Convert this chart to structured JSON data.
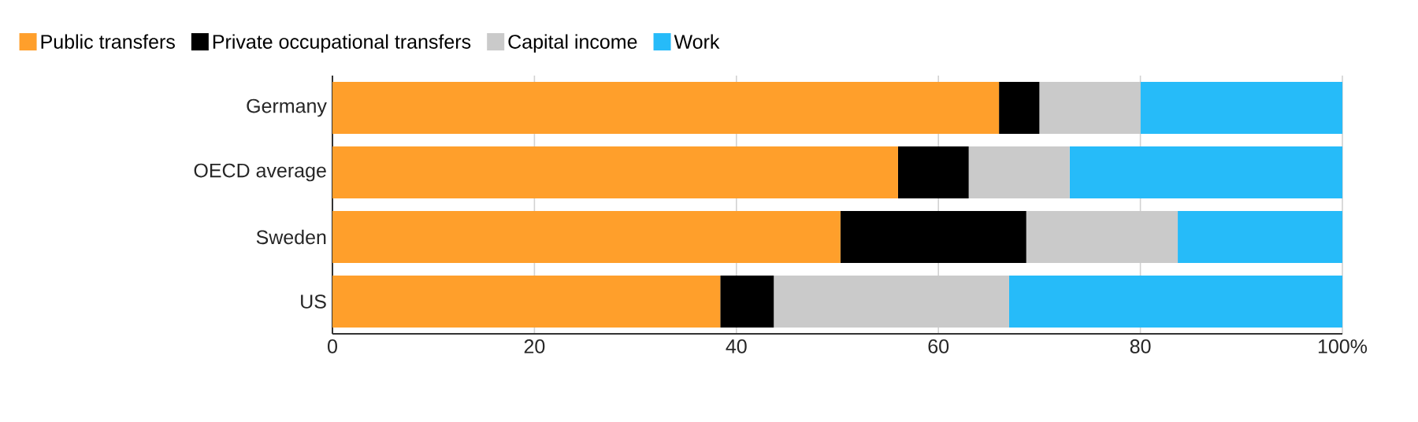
{
  "chart_data": {
    "type": "bar",
    "orientation": "horizontal",
    "stacked": true,
    "categories": [
      "Germany",
      "OECD average",
      "Sweden",
      "US"
    ],
    "series": [
      {
        "name": "Public transfers",
        "color": "#ff9f2b",
        "values": [
          66,
          56,
          50.3,
          38.4
        ]
      },
      {
        "name": "Private occupational transfers",
        "color": "#000000",
        "values": [
          4,
          7,
          18.4,
          5.3
        ]
      },
      {
        "name": "Capital income",
        "color": "#cacaca",
        "values": [
          10,
          10,
          15,
          23.3
        ]
      },
      {
        "name": "Work",
        "color": "#26bbf9",
        "values": [
          20,
          27,
          16.3,
          33
        ]
      }
    ],
    "xlim": [
      0,
      100
    ],
    "xticks": [
      0,
      20,
      40,
      60,
      80,
      {
        "value": 100,
        "label": "100%"
      }
    ],
    "grid": "x",
    "legend": "top"
  }
}
